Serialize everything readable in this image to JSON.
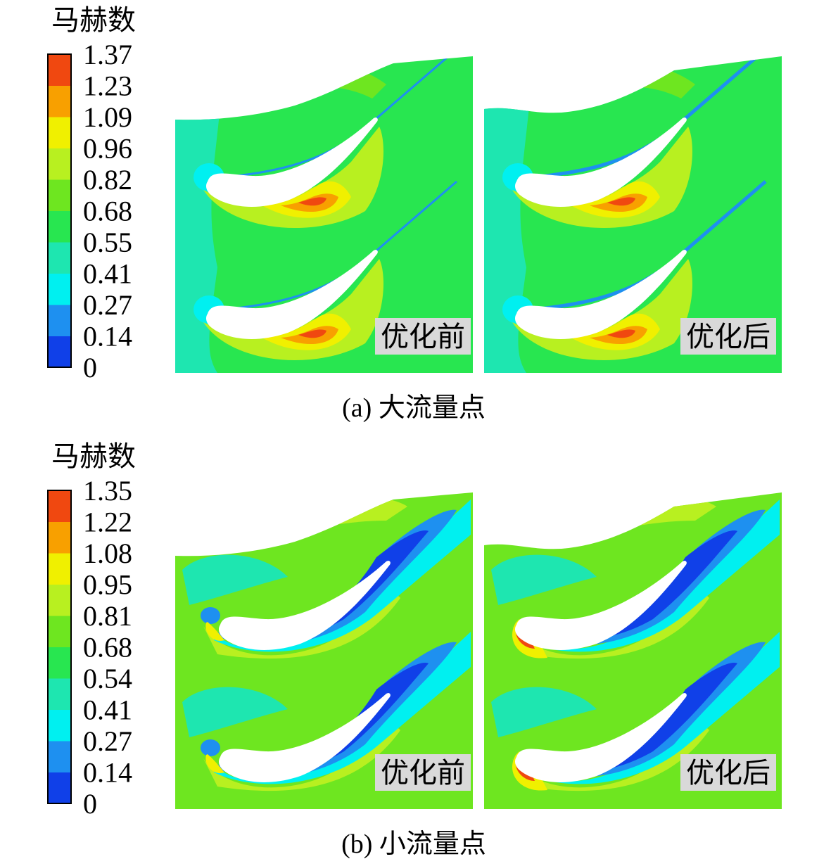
{
  "figures": [
    {
      "legend_title": "马赫数",
      "colorbar": {
        "ticks": [
          1.37,
          1.23,
          1.09,
          0.96,
          0.82,
          0.68,
          0.55,
          0.41,
          0.27,
          0.14,
          0
        ],
        "colors": [
          "#1040e8",
          "#1e90f0",
          "#00f0f0",
          "#1ee6b0",
          "#28e650",
          "#6ee620",
          "#b8f020",
          "#f0f000",
          "#f8a000",
          "#f04810"
        ]
      },
      "plots": [
        {
          "label": "优化前"
        },
        {
          "label": "优化后"
        }
      ],
      "caption": "(a) 大流量点"
    },
    {
      "legend_title": "马赫数",
      "colorbar": {
        "ticks": [
          1.35,
          1.22,
          1.08,
          0.95,
          0.81,
          0.68,
          0.54,
          0.41,
          0.27,
          0.14,
          0
        ],
        "colors": [
          "#1040e8",
          "#1e90f0",
          "#00f0f0",
          "#1ee6b0",
          "#28e650",
          "#6ee620",
          "#b8f020",
          "#f0f000",
          "#f8a000",
          "#f04810"
        ]
      },
      "plots": [
        {
          "label": "优化前"
        },
        {
          "label": "优化后"
        }
      ],
      "caption": "(b) 小流量点"
    }
  ]
}
